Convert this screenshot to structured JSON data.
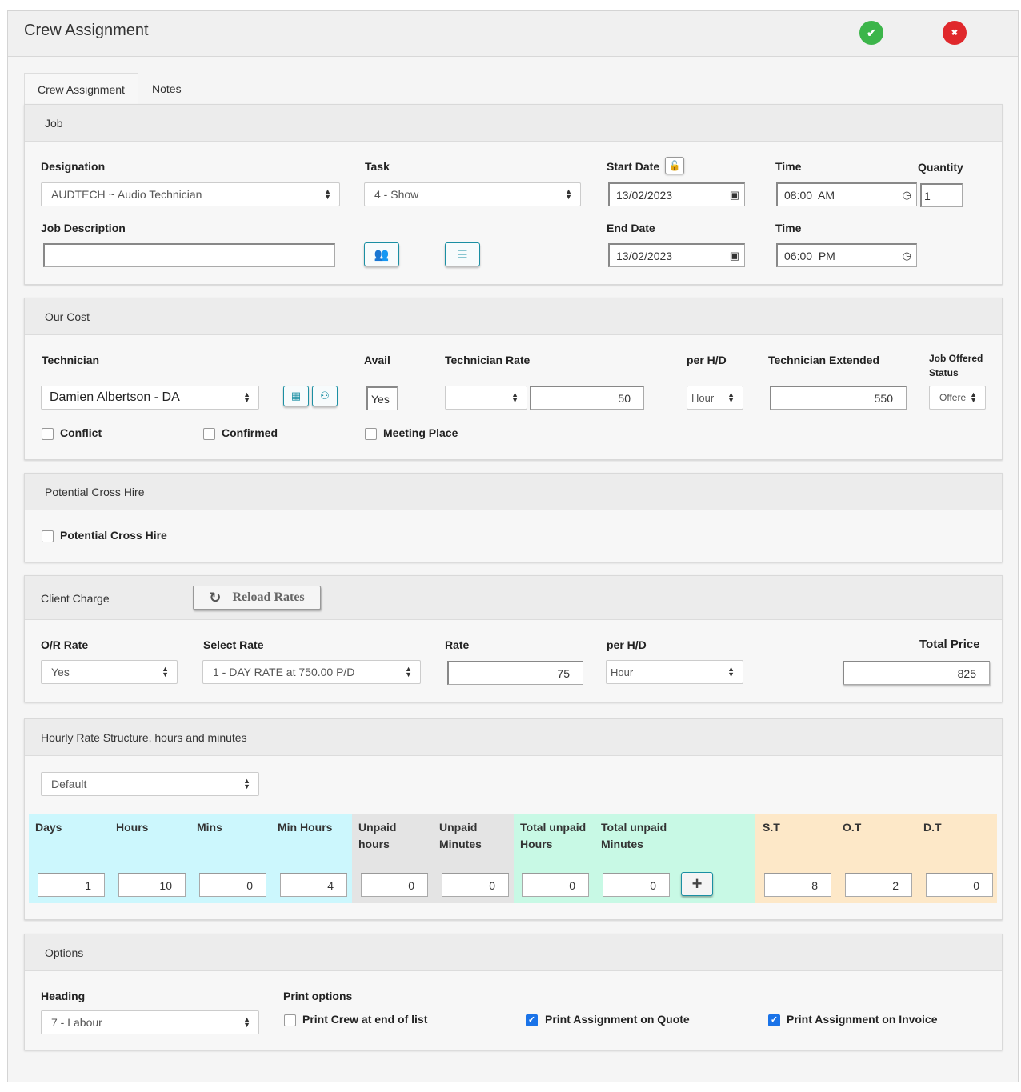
{
  "window": {
    "title": "Crew Assignment",
    "confirm_glyph": "✔",
    "cancel_glyph": "✖",
    "colors": {
      "confirm": "#3cb54a",
      "cancel": "#e0282c",
      "accent": "#1a8fa3"
    }
  },
  "tabs": [
    {
      "label": "Crew Assignment",
      "active": true
    },
    {
      "label": "Notes",
      "active": false
    }
  ],
  "job": {
    "header": "Job",
    "designation_label": "Designation",
    "designation_value": "AUDTECH ~ Audio Technician",
    "task_label": "Task",
    "task_value": "4 - Show",
    "start_date_label": "Start Date",
    "start_date_value": "13/02/2023",
    "start_time_label": "Time",
    "start_time_value": "08:00  AM",
    "quantity_label": "Quantity",
    "quantity_value": "1",
    "job_description_label": "Job Description",
    "job_description_value": "",
    "end_date_label": "End Date",
    "end_date_value": "13/02/2023",
    "end_time_label": "Time",
    "end_time_value": "06:00  PM",
    "icons": {
      "lock": "lock-icon",
      "crew": "users-gear-icon",
      "list": "list-check-icon",
      "calendar": "calendar-icon",
      "clock": "clock-icon"
    }
  },
  "our_cost": {
    "header": "Our Cost",
    "technician_label": "Technician",
    "technician_value": "Damien Albertson - DA",
    "avail_label": "Avail",
    "avail_value": "Yes",
    "technician_rate_label": "Technician Rate",
    "technician_rate_select": "",
    "technician_rate_value": "50",
    "per_hd_label": "per H/D",
    "per_hd_value": "Hour",
    "technician_extended_label": "Technician Extended",
    "technician_extended_value": "550",
    "job_offered_status_label_1": "Job Offered",
    "job_offered_status_label_2": "Status",
    "job_offered_status_value": "Offere",
    "conflict_label": "Conflict",
    "conflict_checked": false,
    "confirmed_label": "Confirmed",
    "confirmed_checked": false,
    "meeting_place_label": "Meeting Place",
    "meeting_place_checked": false
  },
  "cross_hire": {
    "header": "Potential Cross Hire",
    "checkbox_label": "Potential Cross Hire",
    "checked": false
  },
  "client_charge": {
    "header": "Client Charge",
    "reload_label": "Reload Rates",
    "or_rate_label": "O/R Rate",
    "or_rate_value": "Yes",
    "select_rate_label": "Select Rate",
    "select_rate_value": "1 - DAY RATE at 750.00 P/D",
    "rate_label": "Rate",
    "rate_value": "75",
    "per_hd_label": "per H/D",
    "per_hd_value": "Hour",
    "total_price_label": "Total Price",
    "total_price_value": "825"
  },
  "hourly": {
    "header": "Hourly Rate Structure, hours and minutes",
    "structure_value": "Default",
    "colors": {
      "cyan": "#ccf7fd",
      "gray": "#e4e4e4",
      "mint": "#c8f9e5",
      "peach": "#fde8c8"
    },
    "days_label": "Days",
    "days_value": "1",
    "hours_label": "Hours",
    "hours_value": "10",
    "mins_label": "Mins",
    "mins_value": "0",
    "min_hours_label": "Min Hours",
    "min_hours_value": "4",
    "unpaid_hours_label_1": "Unpaid",
    "unpaid_hours_label_2": "hours",
    "unpaid_hours_value": "0",
    "unpaid_minutes_label_1": "Unpaid",
    "unpaid_minutes_label_2": "Minutes",
    "unpaid_minutes_value": "0",
    "total_unpaid_hours_label_1": "Total unpaid",
    "total_unpaid_hours_label_2": "Hours",
    "total_unpaid_hours_value": "0",
    "total_unpaid_minutes_label_1": "Total unpaid",
    "total_unpaid_minutes_label_2": "Minutes",
    "total_unpaid_minutes_value": "0",
    "add_glyph": "+",
    "st_label": "S.T",
    "st_value": "8",
    "ot_label": "O.T",
    "ot_value": "2",
    "dt_label": "D.T",
    "dt_value": "0"
  },
  "options": {
    "header": "Options",
    "heading_label": "Heading",
    "heading_value": "7 - Labour",
    "print_options_label": "Print options",
    "print_crew_label": "Print Crew at end of list",
    "print_crew_checked": false,
    "print_quote_label": "Print Assignment on Quote",
    "print_quote_checked": true,
    "print_invoice_label": "Print Assignment on Invoice",
    "print_invoice_checked": true
  }
}
